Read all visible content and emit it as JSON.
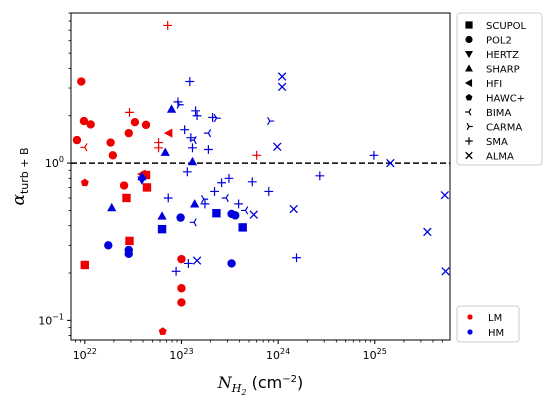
{
  "chart_data": {
    "type": "scatter",
    "title": "",
    "xlabel": {
      "base": "N",
      "sub": "H",
      "subsub": "2",
      "unit": " (cm",
      "sup": "−2",
      "close": ")"
    },
    "ylabel": {
      "base": "α",
      "sub": "turb + B"
    },
    "xscale": "log",
    "yscale": "log",
    "xlim": [
      7.2e+21,
      6e+25
    ],
    "ylim": [
      0.075,
      9.0
    ],
    "x_ticks": [
      {
        "value": 1e+22,
        "base": "10",
        "exp": "22"
      },
      {
        "value": 1e+23,
        "base": "10",
        "exp": "23"
      },
      {
        "value": 1e+24,
        "base": "10",
        "exp": "24"
      },
      {
        "value": 1e+25,
        "base": "10",
        "exp": "25"
      }
    ],
    "y_ticks": [
      {
        "value": 0.1,
        "base": "10",
        "exp": "−1"
      },
      {
        "value": 1,
        "base": "10",
        "exp": "0"
      }
    ],
    "reference_line": {
      "y": 1.0,
      "style": "dashed",
      "color": "#000000"
    },
    "colors": {
      "LM": "#ee0000",
      "HM": "#0000dd"
    },
    "marker_legend": {
      "placement": "top-right",
      "entries": [
        {
          "marker": "square",
          "label": "SCUPOL"
        },
        {
          "marker": "circle",
          "label": "POL2"
        },
        {
          "marker": "tri-down",
          "label": "HERTZ"
        },
        {
          "marker": "tri-up",
          "label": "SHARP"
        },
        {
          "marker": "tri-left",
          "label": "HFI"
        },
        {
          "marker": "pentagon",
          "label": "HAWC+"
        },
        {
          "marker": "y-left",
          "label": "BIMA"
        },
        {
          "marker": "y-right",
          "label": "CARMA"
        },
        {
          "marker": "plus",
          "label": "SMA"
        },
        {
          "marker": "x",
          "label": "ALMA"
        }
      ]
    },
    "color_legend": {
      "placement": "bottom-right",
      "entries": [
        {
          "group": "LM",
          "label": "LM"
        },
        {
          "group": "HM",
          "label": "HM"
        }
      ]
    },
    "series": [
      {
        "group": "LM",
        "marker": "square",
        "points": [
          [
            1e+22,
            0.225
          ],
          [
            2.7e+22,
            0.6
          ],
          [
            2.9e+22,
            0.32
          ],
          [
            4.3e+22,
            0.84
          ],
          [
            4.4e+22,
            0.7
          ]
        ]
      },
      {
        "group": "LM",
        "marker": "circle",
        "points": [
          [
            8.3e+21,
            1.4
          ],
          [
            9.2e+21,
            3.3
          ],
          [
            9.8e+21,
            1.85
          ],
          [
            1.15e+22,
            1.76
          ],
          [
            1.85e+22,
            1.35
          ],
          [
            1.95e+22,
            1.12
          ],
          [
            2.55e+22,
            0.72
          ],
          [
            2.85e+22,
            1.55
          ],
          [
            3.3e+22,
            1.82
          ],
          [
            4.3e+22,
            1.75
          ],
          [
            1e+23,
            0.245
          ],
          [
            1e+23,
            0.16
          ],
          [
            1e+23,
            0.13
          ]
        ]
      },
      {
        "group": "LM",
        "marker": "tri-left",
        "points": [
          [
            3.9e+22,
            0.85
          ],
          [
            7.4e+22,
            1.55
          ]
        ]
      },
      {
        "group": "LM",
        "marker": "pentagon",
        "points": [
          [
            1e+22,
            0.75
          ],
          [
            6.4e+22,
            0.085
          ]
        ]
      },
      {
        "group": "LM",
        "marker": "y-left",
        "points": [
          [
            1e+22,
            1.26
          ]
        ]
      },
      {
        "group": "LM",
        "marker": "plus",
        "points": [
          [
            2.9e+22,
            2.1
          ],
          [
            5.8e+22,
            1.35
          ],
          [
            5.8e+22,
            1.25
          ],
          [
            7.2e+22,
            7.5
          ],
          [
            6e+23,
            1.12
          ]
        ]
      },
      {
        "group": "HM",
        "marker": "square",
        "points": [
          [
            6.3e+22,
            0.38
          ],
          [
            2.3e+23,
            0.48
          ],
          [
            4.3e+23,
            0.39
          ]
        ]
      },
      {
        "group": "HM",
        "marker": "circle",
        "points": [
          [
            1.75e+22,
            0.3
          ],
          [
            2.85e+22,
            0.28
          ],
          [
            2.85e+22,
            0.265
          ],
          [
            9.8e+22,
            0.45
          ],
          [
            3.3e+23,
            0.475
          ],
          [
            3.6e+23,
            0.465
          ],
          [
            3.3e+23,
            0.23
          ]
        ]
      },
      {
        "group": "HM",
        "marker": "tri-down",
        "points": [
          [
            3.9e+22,
            0.78
          ]
        ]
      },
      {
        "group": "HM",
        "marker": "tri-up",
        "points": [
          [
            1.9e+22,
            0.52
          ],
          [
            3.9e+22,
            0.82
          ],
          [
            6.3e+22,
            0.46
          ],
          [
            6.8e+22,
            1.17
          ],
          [
            7.9e+22,
            2.2
          ],
          [
            1.3e+23,
            1.02
          ],
          [
            1.37e+23,
            0.55
          ]
        ]
      },
      {
        "group": "HM",
        "marker": "y-left",
        "points": [
          [
            1.35e+23,
            1.4
          ],
          [
            1.35e+23,
            0.42
          ],
          [
            1.9e+23,
            1.55
          ],
          [
            2.9e+23,
            0.6
          ],
          [
            4.6e+23,
            0.5
          ]
        ]
      },
      {
        "group": "HM",
        "marker": "y-right",
        "points": [
          [
            9.5e+22,
            2.35
          ],
          [
            1.7e+23,
            0.59
          ],
          [
            2.3e+23,
            1.93
          ],
          [
            8.2e+23,
            1.85
          ]
        ]
      },
      {
        "group": "HM",
        "marker": "plus",
        "points": [
          [
            7.3e+22,
            0.6
          ],
          [
            8.8e+22,
            0.205
          ],
          [
            9.2e+22,
            2.45
          ],
          [
            1.08e+23,
            1.63
          ],
          [
            1.15e+23,
            0.88
          ],
          [
            1.18e+23,
            0.23
          ],
          [
            1.22e+23,
            3.3
          ],
          [
            1.25e+23,
            1.45
          ],
          [
            1.3e+23,
            1.25
          ],
          [
            1.4e+23,
            2.15
          ],
          [
            1.45e+23,
            2.0
          ],
          [
            1.75e+23,
            0.55
          ],
          [
            1.9e+23,
            1.22
          ],
          [
            2.1e+23,
            1.95
          ],
          [
            2.2e+23,
            0.66
          ],
          [
            2.6e+23,
            0.75
          ],
          [
            3.1e+23,
            0.8
          ],
          [
            3.9e+23,
            0.55
          ],
          [
            5.4e+23,
            0.76
          ],
          [
            8e+23,
            0.66
          ],
          [
            2.7e+24,
            0.83
          ],
          [
            9.8e+24,
            1.12
          ],
          [
            1.55e+24,
            0.25
          ]
        ]
      },
      {
        "group": "HM",
        "marker": "x",
        "points": [
          [
            1.45e+23,
            0.24
          ],
          [
            5.6e+23,
            0.47
          ],
          [
            9.8e+23,
            1.27
          ],
          [
            1.1e+24,
            3.55
          ],
          [
            1.1e+24,
            3.05
          ],
          [
            1.45e+24,
            0.51
          ],
          [
            1.45e+25,
            1.0
          ],
          [
            3.5e+25,
            0.365
          ],
          [
            5.3e+25,
            0.625
          ],
          [
            5.4e+25,
            0.205
          ]
        ]
      }
    ]
  }
}
